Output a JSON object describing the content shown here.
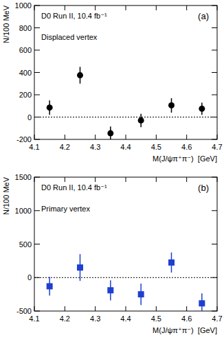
{
  "chart_data": [
    {
      "type": "scatter",
      "panel": "(a)",
      "title": "D0 Run II, 10.4 fb⁻¹",
      "subtitle": "Displaced vertex",
      "x_label": "M(J/ψπ⁺π⁻)  [GeV]",
      "y_label": "N/100 MeV",
      "x": [
        4.15,
        4.25,
        4.35,
        4.45,
        4.55,
        4.65
      ],
      "values": [
        85,
        375,
        -145,
        -30,
        105,
        75
      ],
      "errors": [
        65,
        75,
        60,
        60,
        65,
        55
      ],
      "baseline": 0,
      "xlim": [
        4.1,
        4.7
      ],
      "xticks": [
        4.1,
        4.2,
        4.3,
        4.4,
        4.5,
        4.6,
        4.7
      ],
      "ylim": [
        -200,
        1000
      ],
      "yticks": [
        -200,
        0,
        200,
        400,
        600,
        800,
        1000
      ],
      "color": "#000000",
      "marker": "circle"
    },
    {
      "type": "scatter",
      "panel": "(b)",
      "title": "D0 Run II, 10.4 fb⁻¹",
      "subtitle": "Primary vertex",
      "x_label": "M(J/ψπ⁺π⁻)  [GeV]",
      "y_label": "N/100 MeV",
      "x": [
        4.15,
        4.25,
        4.35,
        4.45,
        4.55,
        4.65
      ],
      "values": [
        -130,
        150,
        -190,
        -250,
        225,
        -385
      ],
      "errors": [
        140,
        200,
        150,
        160,
        150,
        150
      ],
      "baseline": 0,
      "xlim": [
        4.1,
        4.7
      ],
      "xticks": [
        4.1,
        4.2,
        4.3,
        4.4,
        4.5,
        4.6,
        4.7
      ],
      "ylim": [
        -500,
        1500
      ],
      "yticks": [
        -500,
        0,
        500,
        1000,
        1500
      ],
      "color": "#1f3fd0",
      "marker": "square"
    }
  ]
}
